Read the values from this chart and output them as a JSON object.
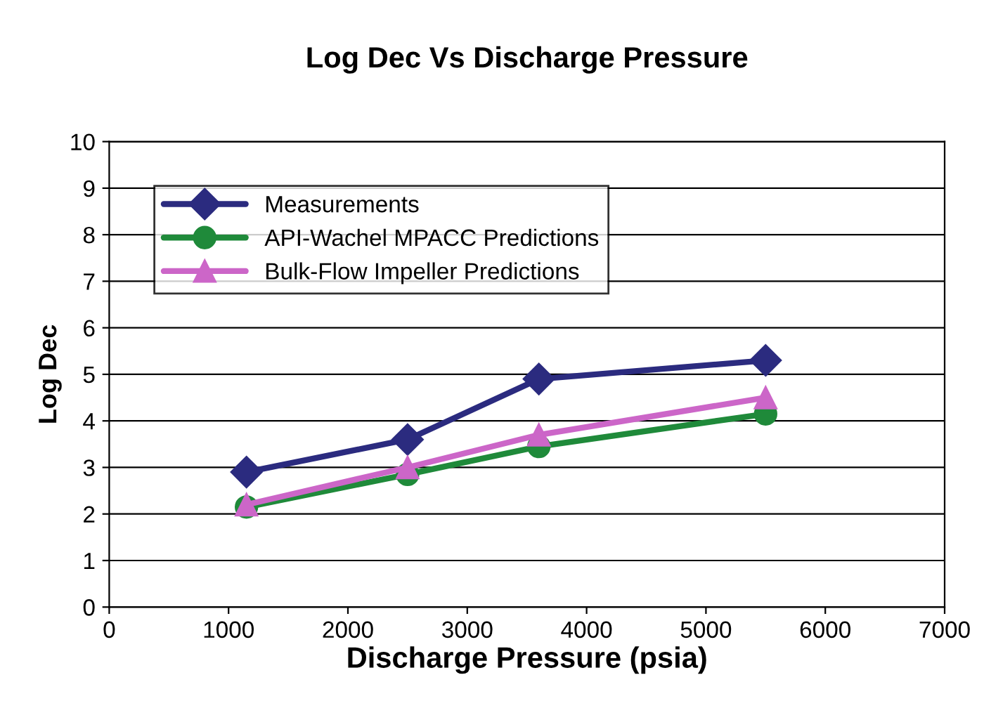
{
  "chart_data": {
    "type": "line",
    "title": "Log Dec Vs Discharge Pressure",
    "xlabel": "Discharge Pressure (psia)",
    "ylabel": "Log Dec",
    "series": [
      {
        "name": "Measurements",
        "color": "#2b2b7f",
        "marker": "diamond",
        "x": [
          1150,
          2500,
          3600,
          5500
        ],
        "values": [
          2.9,
          3.6,
          4.9,
          5.3
        ]
      },
      {
        "name": "API-Wachel MPACC Predictions",
        "color": "#1f8a3a",
        "marker": "circle",
        "x": [
          1150,
          2500,
          3600,
          5500
        ],
        "values": [
          2.15,
          2.85,
          3.45,
          4.15
        ]
      },
      {
        "name": "Bulk-Flow Impeller Predictions",
        "color": "#cc66c8",
        "marker": "triangle",
        "x": [
          1150,
          2500,
          3600,
          5500
        ],
        "values": [
          2.2,
          3.0,
          3.7,
          4.5
        ]
      }
    ],
    "xlim": [
      0,
      7000
    ],
    "xticks": [
      0,
      1000,
      2000,
      3000,
      4000,
      5000,
      6000,
      7000
    ],
    "ylim": [
      0,
      10
    ],
    "yticks": [
      0,
      1,
      2,
      3,
      4,
      5,
      6,
      7,
      8,
      9,
      10
    ],
    "grid": "y",
    "legend": "top left",
    "line_style": "solid"
  }
}
